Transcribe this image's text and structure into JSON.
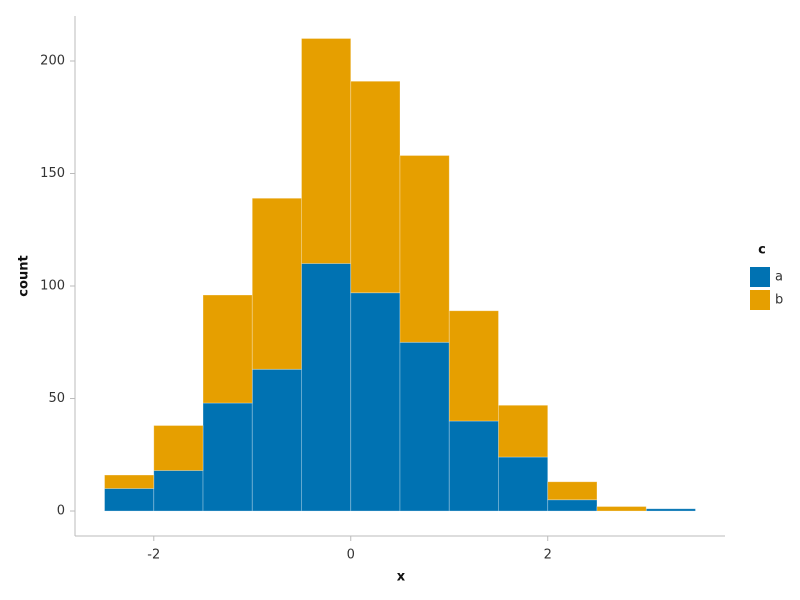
{
  "chart_data": {
    "type": "histogram",
    "stacked": true,
    "bins": [
      -2.5,
      -2,
      -1.5,
      -1,
      -0.5,
      0,
      0.5,
      1,
      1.5,
      2,
      2.5,
      3,
      3.5
    ],
    "series": [
      {
        "name": "a",
        "color": "#0072B2",
        "values": [
          10,
          18,
          48,
          63,
          110,
          97,
          75,
          40,
          24,
          5,
          0,
          1
        ]
      },
      {
        "name": "b",
        "color": "#E69F00",
        "values": [
          6,
          20,
          48,
          76,
          100,
          94,
          83,
          49,
          23,
          8,
          2,
          0
        ]
      }
    ],
    "x_label": "x",
    "y_label": "count",
    "legend_title": "c",
    "legend_position": "right",
    "xlim": [
      -2.8,
      3.8
    ],
    "xticks": [
      -2,
      0,
      2
    ],
    "ylim": [
      -11.1,
      220
    ],
    "yticks": [
      0,
      50,
      100,
      150,
      200
    ]
  }
}
